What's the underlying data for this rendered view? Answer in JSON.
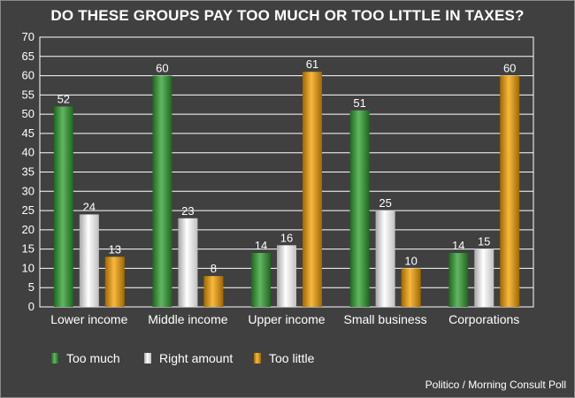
{
  "chart_data": {
    "type": "bar",
    "title": "DO THESE GROUPS PAY TOO MUCH OR TOO LITTLE IN TAXES?",
    "categories": [
      "Lower income",
      "Middle income",
      "Upper income",
      "Small business",
      "Corporations"
    ],
    "series": [
      {
        "name": "Too much",
        "values": [
          52,
          60,
          14,
          51,
          14
        ],
        "color": "#2e9e2e"
      },
      {
        "name": "Right amount",
        "values": [
          24,
          23,
          16,
          25,
          15
        ],
        "color": "#ffffff"
      },
      {
        "name": "Too little",
        "values": [
          13,
          8,
          61,
          10,
          60
        ],
        "color": "#f5a000"
      }
    ],
    "ylim": [
      0,
      70
    ],
    "yticks": [
      0,
      5,
      10,
      15,
      20,
      25,
      30,
      35,
      40,
      45,
      50,
      55,
      60,
      65,
      70
    ],
    "grid": true,
    "legend": "bottom-left",
    "xlabel": "",
    "ylabel": ""
  },
  "source": "Politico / Morning Consult Poll"
}
